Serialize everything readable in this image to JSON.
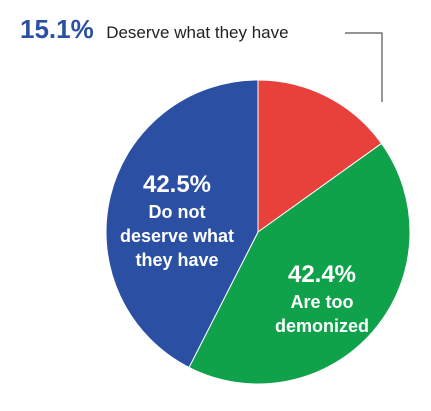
{
  "chart_data": {
    "type": "pie",
    "slices": [
      {
        "label": "Deserve what they have",
        "value": 15.1,
        "pct_label": "15.1%",
        "color": "#e8413b",
        "label_lines": [
          "Deserve what they have"
        ]
      },
      {
        "label": "Are too demonized",
        "value": 42.4,
        "pct_label": "42.4%",
        "color": "#0fa24b",
        "label_lines": [
          "Are too",
          "demonized"
        ]
      },
      {
        "label": "Do not deserve what they have",
        "value": 42.5,
        "pct_label": "42.5%",
        "color": "#2a4fa3",
        "label_lines": [
          "Do not",
          "deserve what",
          "they have"
        ]
      }
    ],
    "start": "12 o'clock",
    "direction": "clockwise",
    "callout_color": "#2a4fa3"
  }
}
